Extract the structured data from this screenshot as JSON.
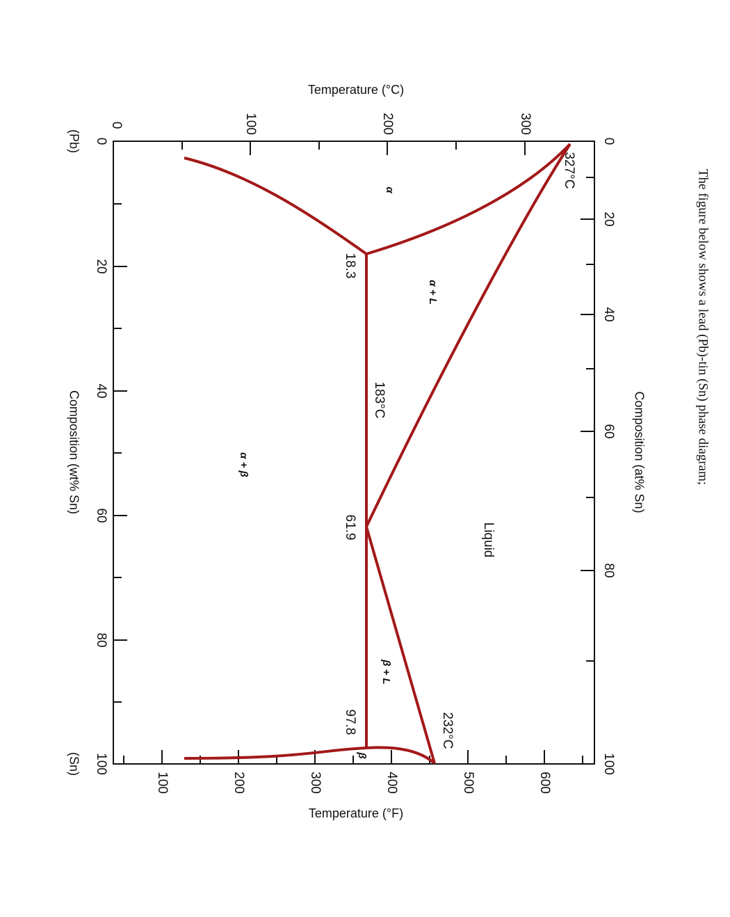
{
  "caption": "The figure below shows a lead (Pb)-tin (Sn) phase diagram;",
  "axes": {
    "temp_c": {
      "title": "Temperature (°C)",
      "ticks": [
        "0",
        "100",
        "200",
        "300"
      ]
    },
    "temp_f": {
      "title": "Temperature (°F)",
      "ticks": [
        "100",
        "200",
        "300",
        "400",
        "500",
        "600"
      ]
    },
    "wt": {
      "title": "Composition (wt% Sn)",
      "ticks": [
        "0",
        "20",
        "40",
        "60",
        "80",
        "100"
      ],
      "left_end": "(Pb)",
      "right_end": "(Sn)"
    },
    "at": {
      "title": "Composition (at% Sn)",
      "ticks": [
        "0",
        "20",
        "40",
        "60",
        "80",
        "100"
      ]
    }
  },
  "labels": {
    "t_pb": "327°C",
    "c_alpha": "18.3",
    "t_eutectic": "183°C",
    "c_eutectic": "61.9",
    "c_beta": "97.8",
    "t_sn": "232°C",
    "alpha": "α",
    "alpha_l": "α + L",
    "alpha_beta": "α + β",
    "liquid": "Liquid",
    "beta_l": "β + L",
    "beta": "β"
  }
}
